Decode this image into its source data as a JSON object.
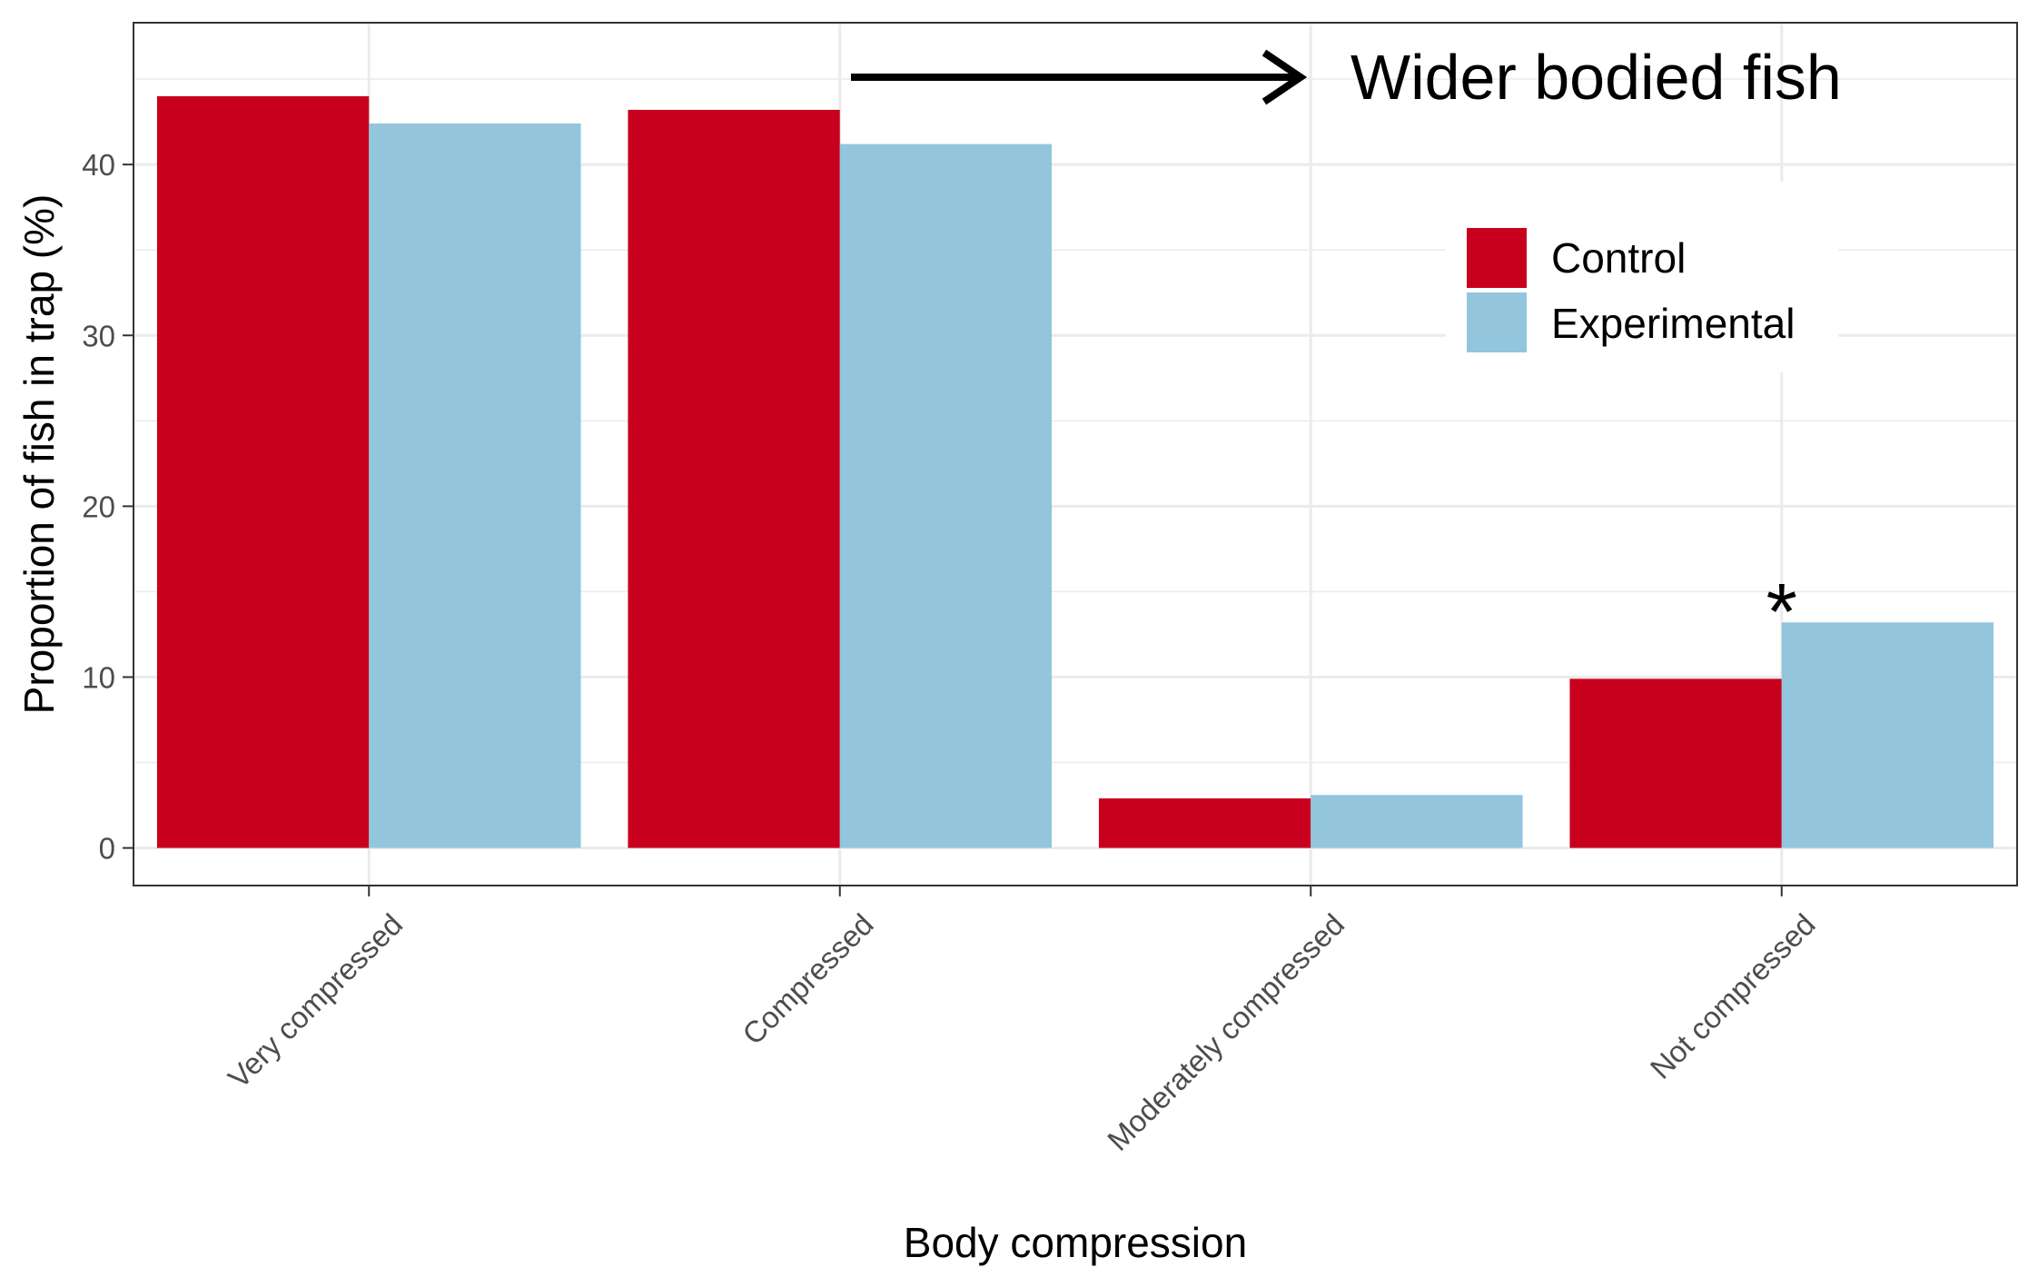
{
  "chart_data": {
    "type": "bar",
    "categories": [
      "Very compressed",
      "Compressed",
      "Moderately compressed",
      "Not compressed"
    ],
    "series": [
      {
        "name": "Control",
        "color": "#c8001e",
        "values": [
          44.0,
          43.2,
          2.9,
          9.9
        ]
      },
      {
        "name": "Experimental",
        "color": "#93c5dd",
        "values": [
          42.4,
          41.2,
          3.1,
          13.2
        ]
      }
    ],
    "xlabel": "Body compression",
    "ylabel": "Proportion of fish in trap (%)",
    "ylim": [
      -2.2,
      48.3
    ],
    "yticks": [
      0,
      10,
      20,
      30,
      40
    ],
    "grid": true,
    "legend_position": "top-right",
    "annotations": {
      "arrow_text": "Wider bodied fish",
      "significance_marker": "*",
      "significance_category": "Not compressed"
    }
  }
}
